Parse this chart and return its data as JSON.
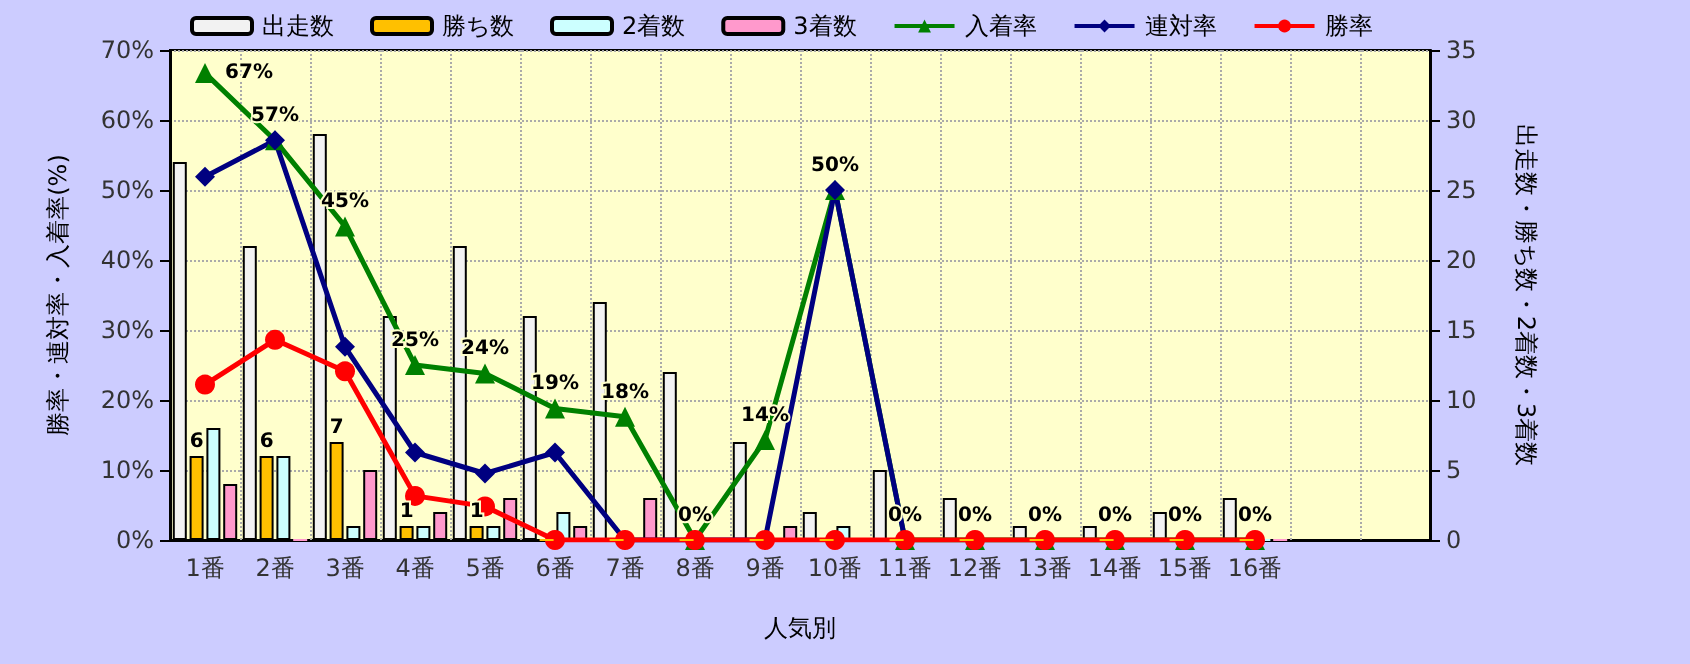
{
  "chart_data": {
    "type": "bar",
    "xlabel": "人気別",
    "ylabel": "勝率・連対率・入着率(%)",
    "y2label": "出走数・勝ち数・2着数・3着数",
    "categories": [
      "1番",
      "2番",
      "3番",
      "4番",
      "5番",
      "6番",
      "7番",
      "8番",
      "9番",
      "10番",
      "11番",
      "12番",
      "13番",
      "14番",
      "15番",
      "16番",
      null,
      null
    ],
    "series": [
      {
        "name": "出走数",
        "axis": "y2",
        "color": "#f2f2f2",
        "values": [
          27,
          21,
          29,
          16,
          21,
          16,
          17,
          12,
          7,
          2,
          5,
          3,
          1,
          1,
          2,
          3,
          null,
          null
        ]
      },
      {
        "name": "勝ち数",
        "axis": "y2",
        "color": "#ffc000",
        "values": [
          6,
          6,
          7,
          1,
          1,
          0,
          0,
          0,
          0,
          0,
          0,
          0,
          0,
          0,
          0,
          0,
          null,
          null
        ],
        "value_labels": [
          "6",
          "6",
          "7",
          "1",
          "1",
          null,
          null,
          null,
          null,
          null,
          null,
          null,
          null,
          null,
          null,
          null,
          null,
          null
        ]
      },
      {
        "name": "2着数",
        "axis": "y2",
        "color": "#ccffff",
        "values": [
          8,
          6,
          1,
          1,
          1,
          2,
          0,
          0,
          0,
          1,
          0,
          0,
          0,
          0,
          0,
          0,
          null,
          null
        ]
      },
      {
        "name": "3着数",
        "axis": "y2",
        "color": "#ff99cc",
        "values": [
          4,
          0,
          5,
          2,
          3,
          1,
          3,
          0,
          1,
          0,
          0,
          0,
          0,
          0,
          0,
          0,
          null,
          null
        ]
      },
      {
        "name": "入着率",
        "type": "line",
        "axis": "y",
        "color": "#008000",
        "marker": "triangle",
        "values": [
          66.7,
          57.1,
          44.8,
          25,
          23.8,
          18.8,
          17.6,
          0,
          14.3,
          50,
          0,
          0,
          0,
          0,
          0,
          0,
          null,
          null
        ],
        "value_labels": [
          "67%",
          "57%",
          "45%",
          "25%",
          "24%",
          "19%",
          "18%",
          "0%",
          "14%",
          "50%",
          "0%",
          "0%",
          "0%",
          "0%",
          "0%",
          "0%",
          null,
          null
        ]
      },
      {
        "name": "連対率",
        "type": "line",
        "axis": "y",
        "color": "#000080",
        "marker": "diamond",
        "values": [
          51.9,
          57.1,
          27.6,
          12.5,
          9.5,
          12.5,
          0,
          0,
          0,
          50,
          0,
          null,
          null,
          null,
          null,
          null,
          null,
          null
        ]
      },
      {
        "name": "勝率",
        "type": "line",
        "axis": "y",
        "color": "#ff0000",
        "marker": "circle",
        "values": [
          22.2,
          28.6,
          24.1,
          6.3,
          4.8,
          0,
          0,
          0,
          0,
          0,
          0,
          0,
          0,
          0,
          0,
          0,
          null,
          null
        ]
      }
    ],
    "ylim": [
      0,
      70
    ],
    "yticks": [
      {
        "value": 0,
        "label": "0%"
      },
      {
        "value": 10,
        "label": "10%"
      },
      {
        "value": 20,
        "label": "20%"
      },
      {
        "value": 30,
        "label": "30%"
      },
      {
        "value": 40,
        "label": "40%"
      },
      {
        "value": 50,
        "label": "50%"
      },
      {
        "value": 60,
        "label": "60%"
      },
      {
        "value": 70,
        "label": "70%"
      }
    ],
    "y2lim": [
      0,
      35
    ],
    "y2ticks": [
      0,
      5,
      10,
      15,
      20,
      25,
      30,
      35
    ],
    "grid": true,
    "legend": "top"
  }
}
